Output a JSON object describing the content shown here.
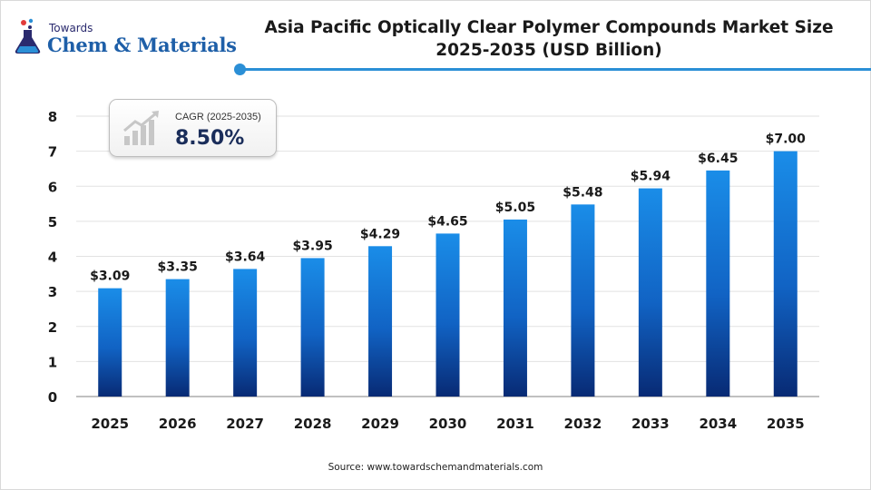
{
  "brand": {
    "small": "Towards",
    "big": "Chem & Materials"
  },
  "title": "Asia Pacific Optically Clear Polymer Compounds Market Size 2025-2035 (USD Billion)",
  "cagr": {
    "label": "CAGR (2025-2035)",
    "value": "8.50%"
  },
  "source": "Source: www.towardschemandmaterials.com",
  "colors": {
    "accent": "#2b8fd6",
    "bar_top": "#1a8de8",
    "bar_bottom": "#082a74"
  },
  "icons": [
    "flask-icon",
    "growth-chart-icon"
  ],
  "chart_data": {
    "type": "bar",
    "title": "Asia Pacific Optically Clear Polymer Compounds Market Size 2025-2035 (USD Billion)",
    "categories": [
      "2025",
      "2026",
      "2027",
      "2028",
      "2029",
      "2030",
      "2031",
      "2032",
      "2033",
      "2034",
      "2035"
    ],
    "values": [
      3.09,
      3.35,
      3.64,
      3.95,
      4.29,
      4.65,
      5.05,
      5.48,
      5.94,
      6.45,
      7.0
    ],
    "data_labels": [
      "$3.09",
      "$3.35",
      "$3.64",
      "$3.95",
      "$4.29",
      "$4.65",
      "$5.05",
      "$5.48",
      "$5.94",
      "$6.45",
      "$7.00"
    ],
    "yticks": [
      0,
      1,
      2,
      3,
      4,
      5,
      6,
      7,
      8
    ],
    "ylim": [
      0,
      8
    ],
    "grid": true,
    "legend": "none"
  }
}
